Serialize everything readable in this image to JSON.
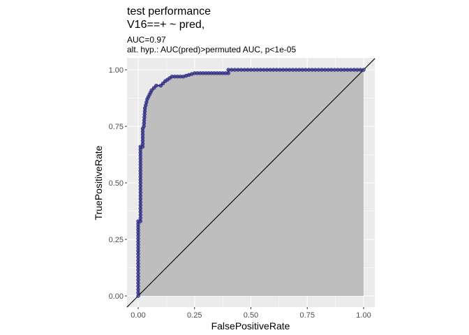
{
  "chart_data": {
    "type": "line",
    "title": "test performance",
    "title_line2": "V16==+ ~ pred,",
    "subtitle": "AUC=0.97",
    "subtitle_line2": "alt. hyp.: AUC(pred)>permuted AUC, p<1e-05",
    "xlabel": "FalsePositiveRate",
    "ylabel": "TruePositiveRate",
    "xlim": [
      0,
      1
    ],
    "ylim": [
      0,
      1
    ],
    "x_ticks": [
      "0.00",
      "0.25",
      "0.50",
      "0.75",
      "1.00"
    ],
    "y_ticks": [
      "0.00",
      "0.25",
      "0.50",
      "0.75",
      "1.00"
    ],
    "grid": true,
    "legend": "none",
    "diagonal_reference_line": true,
    "shaded_area_under_curve": true,
    "series": [
      {
        "x": [
          0,
          0,
          0,
          0,
          0,
          0.01,
          0.01,
          0.01,
          0.02,
          0.02,
          0.025,
          0.03,
          0.04,
          0.05,
          0.06,
          0.08,
          0.1,
          0.12,
          0.15,
          0.2,
          0.25,
          0.3,
          0.35,
          0.4,
          0.4,
          0.5,
          0.6,
          0.7,
          0.8,
          0.9,
          1.0
        ],
        "y": [
          0,
          0.1,
          0.2,
          0.28,
          0.33,
          0.33,
          0.5,
          0.66,
          0.66,
          0.74,
          0.75,
          0.83,
          0.87,
          0.89,
          0.91,
          0.93,
          0.93,
          0.95,
          0.97,
          0.97,
          0.985,
          0.985,
          0.985,
          0.985,
          1.0,
          1.0,
          1.0,
          1.0,
          1.0,
          1.0,
          1.0
        ]
      }
    ]
  },
  "colors": {
    "panel_background": "#ebebeb",
    "grid_major": "#ffffff",
    "area_fill": "#bebebe",
    "curve_line": "#1a1a8a",
    "point_fill": "#4a4a8a",
    "diagonal": "#000000"
  }
}
